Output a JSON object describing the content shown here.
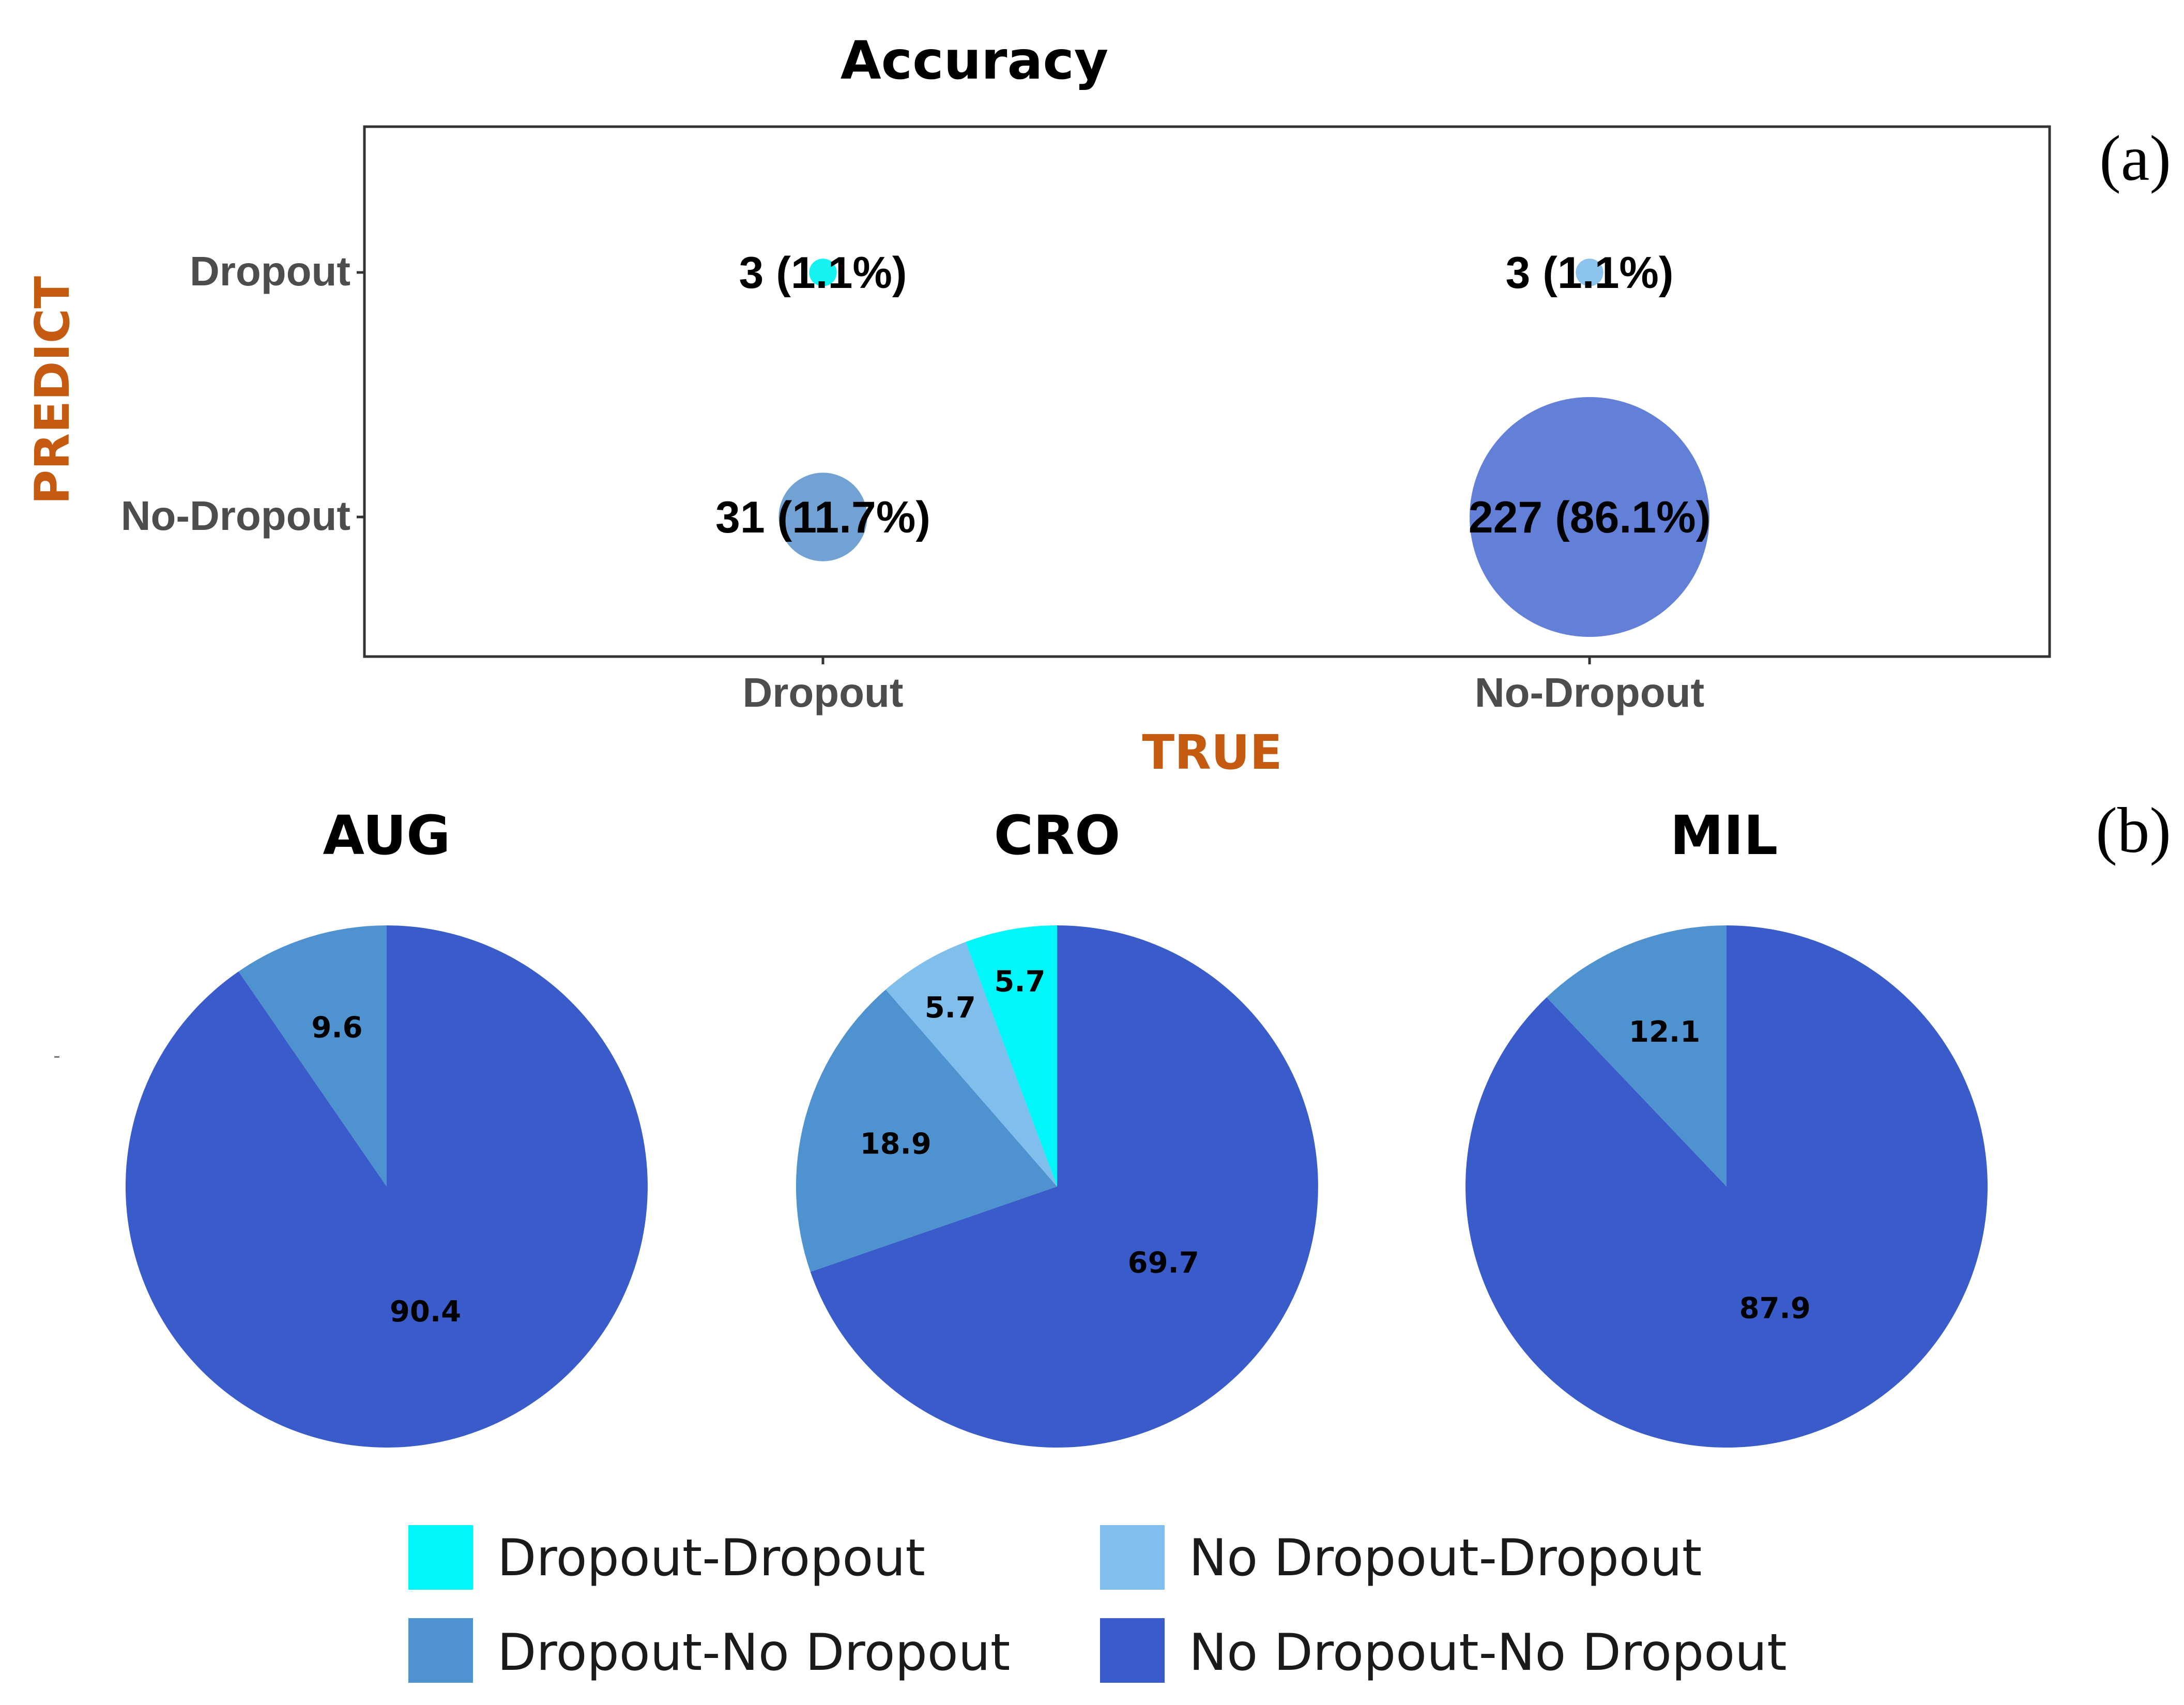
{
  "panel_labels": {
    "a": "(a)",
    "b": "(b)"
  },
  "colors": {
    "dropout_dropout": "#00F7F9",
    "nodropout_dropout": "#80BFEC",
    "dropout_nodropout": "#4E93CF",
    "nodropout_nodropout": "#3A5CCB",
    "bubble_dd": "#14F2F2",
    "bubble_nd": "#8CC3EC",
    "bubble_dn": "#72A2D4",
    "bubble_nn": "#6380D9",
    "axis_title": "#C55A11",
    "tick_text": "#4D4D4D",
    "frame": "#333333"
  },
  "stray_mark": "-",
  "chart_data": [
    {
      "type": "bubble",
      "title": "Accuracy",
      "xlabel": "TRUE",
      "ylabel": "PREDICT",
      "x_categories": [
        "Dropout",
        "No-Dropout"
      ],
      "y_categories": [
        "Dropout",
        "No-Dropout"
      ],
      "points": [
        {
          "x": "Dropout",
          "y": "Dropout",
          "count": 3,
          "percent": 1.1,
          "label": "3 (1.1%)",
          "color_key": "bubble_dd"
        },
        {
          "x": "No-Dropout",
          "y": "Dropout",
          "count": 3,
          "percent": 1.1,
          "label": "3 (1.1%)",
          "color_key": "bubble_nd"
        },
        {
          "x": "Dropout",
          "y": "No-Dropout",
          "count": 31,
          "percent": 11.7,
          "label": "31 (11.7%)",
          "color_key": "bubble_dn"
        },
        {
          "x": "No-Dropout",
          "y": "No-Dropout",
          "count": 227,
          "percent": 86.1,
          "label": "227 (86.1%)",
          "color_key": "bubble_nn"
        }
      ]
    },
    {
      "type": "pie",
      "title": "AUG",
      "start": "12 o'clock, clockwise",
      "slices": [
        {
          "category": "No Dropout-No Dropout",
          "value": 90.4,
          "label": "90.4",
          "color_key": "nodropout_nodropout"
        },
        {
          "category": "Dropout-No Dropout",
          "value": 9.6,
          "label": "9.6",
          "color_key": "dropout_nodropout"
        }
      ]
    },
    {
      "type": "pie",
      "title": "CRO",
      "start": "12 o'clock, clockwise",
      "slices": [
        {
          "category": "No Dropout-No Dropout",
          "value": 69.7,
          "label": "69.7",
          "color_key": "nodropout_nodropout"
        },
        {
          "category": "Dropout-No Dropout",
          "value": 18.9,
          "label": "18.9",
          "color_key": "dropout_nodropout"
        },
        {
          "category": "No Dropout-Dropout",
          "value": 5.7,
          "label": "5.7",
          "color_key": "nodropout_dropout"
        },
        {
          "category": "Dropout-Dropout",
          "value": 5.7,
          "label": "5.7",
          "color_key": "dropout_dropout"
        }
      ]
    },
    {
      "type": "pie",
      "title": "MIL",
      "start": "12 o'clock, clockwise",
      "slices": [
        {
          "category": "No Dropout-No Dropout",
          "value": 87.9,
          "label": "87.9",
          "color_key": "nodropout_nodropout"
        },
        {
          "category": "Dropout-No Dropout",
          "value": 12.1,
          "label": "12.1",
          "color_key": "dropout_nodropout"
        }
      ]
    }
  ],
  "legend": {
    "placement": "bottom",
    "items": [
      {
        "label": "Dropout-Dropout",
        "color_key": "dropout_dropout"
      },
      {
        "label": "No Dropout-Dropout",
        "color_key": "nodropout_dropout"
      },
      {
        "label": "Dropout-No Dropout",
        "color_key": "dropout_nodropout"
      },
      {
        "label": "No Dropout-No Dropout",
        "color_key": "nodropout_nodropout"
      }
    ]
  }
}
